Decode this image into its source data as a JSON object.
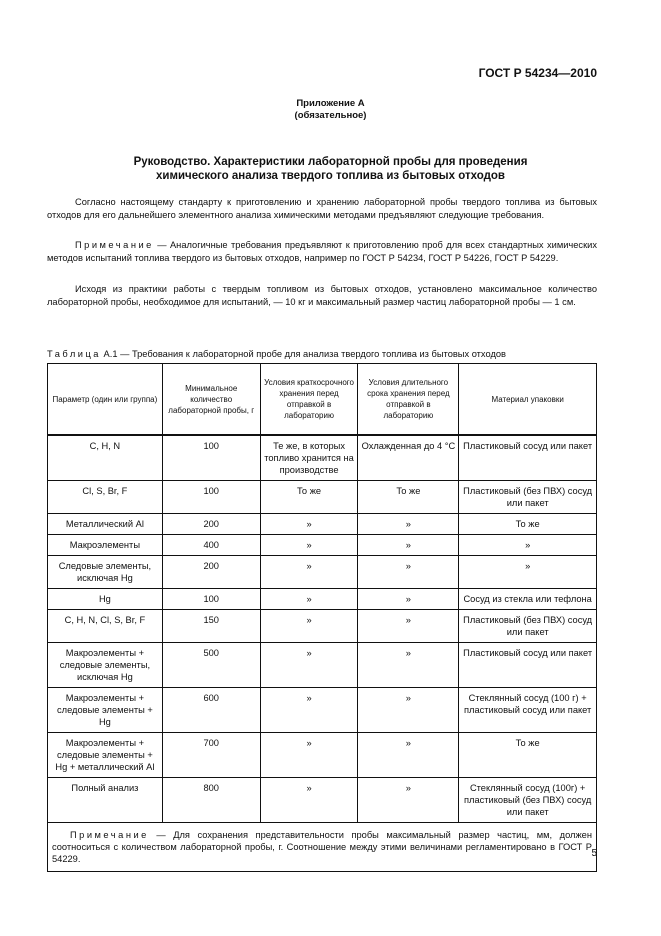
{
  "header": {
    "standard": "ГОСТ Р 54234—2010"
  },
  "appendix": {
    "title": "Приложение А",
    "status": "(обязательное)"
  },
  "section": {
    "title_line1": "Руководство. Характеристики лабораторной пробы для проведения",
    "title_line2": "химического анализа твердого топлива из бытовых отходов"
  },
  "paragraphs": {
    "p1": "Согласно настоящему стандарту к приготовлению и хранению лабораторной пробы твердого топлива из бытовых отходов для его дальнейшего элементного анализа химическими методами предъявляют следующие требования.",
    "note_label": "Примечание",
    "note1": " — Аналогичные требования предъявляют к приготовлению проб для всех стандартных химических методов испытаний топлива твердого из бытовых отходов, например по ГОСТ Р 54234, ГОСТ Р 54226, ГОСТ Р 54229.",
    "p2": "Исходя из практики работы с твердым топливом из бытовых отходов, установлено максимальное количество лабораторной пробы, необходимое для испытаний, — 10 кг и максимальный размер частиц лабораторной пробы — 1 см."
  },
  "table": {
    "caption_label": "Таблица",
    "caption": " А.1 — Требования к лабораторной пробе для анализа твердого топлива из бытовых отходов",
    "headers": [
      "Параметр (один или группа)",
      "Минимальное количество лабораторной пробы, г",
      "Условия краткосрочного хранения перед отправкой в лабораторию",
      "Условия длительного срока хранения перед отправкой в лабораторию",
      "Материал упаковки"
    ],
    "rows": [
      [
        "C, H, N",
        "100",
        "Те же, в которых топливо хранится на производстве",
        "Охлажденная до 4 °С",
        "Пластиковый сосуд или пакет"
      ],
      [
        "Cl, S, Br, F",
        "100",
        "То же",
        "То же",
        "Пластиковый (без ПВХ) сосуд или пакет"
      ],
      [
        "Металлический Al",
        "200",
        "»",
        "»",
        "То же"
      ],
      [
        "Макроэлементы",
        "400",
        "»",
        "»",
        "»"
      ],
      [
        "Следовые элементы, исключая Hg",
        "200",
        "»",
        "»",
        "»"
      ],
      [
        "Hg",
        "100",
        "»",
        "»",
        "Сосуд из стекла или тефлона"
      ],
      [
        "C, H, N, Cl, S, Br, F",
        "150",
        "»",
        "»",
        "Пластиковый (без ПВХ) сосуд или пакет"
      ],
      [
        "Макроэлементы + следовые элементы, исключая Hg",
        "500",
        "»",
        "»",
        "Пластиковый сосуд или пакет"
      ],
      [
        "Макроэлементы + следовые элементы + Hg",
        "600",
        "»",
        "»",
        "Стеклянный сосуд (100 г) + пластиковый сосуд или пакет"
      ],
      [
        "Макроэлементы + следовые элементы + Hg + металлический Al",
        "700",
        "»",
        "»",
        "То же"
      ],
      [
        "Полный анализ",
        "800",
        "»",
        "»",
        "Стеклянный сосуд (100г) + пластиковый (без ПВХ) сосуд или пакет"
      ]
    ],
    "note_label": "Примечание",
    "note": " — Для сохранения представительности пробы максимальный размер частиц, мм, должен соотноситься с количеством лабораторной пробы, г. Соотношение между этими величинами регламентировано в ГОСТ Р 54229."
  },
  "footer": {
    "page_number": "5"
  }
}
